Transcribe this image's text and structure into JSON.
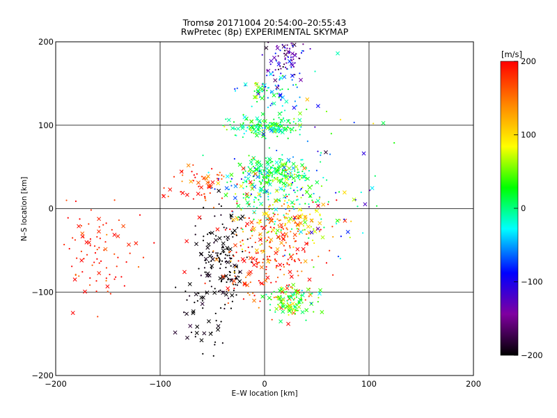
{
  "chart_data": {
    "type": "scatter",
    "title": "Tromsø 20171004 20:54:00–20:55:43",
    "subtitle": "RwPretec (8p) EXPERIMENTAL SKYMAP",
    "xlabel": "E–W location [km]",
    "ylabel": "N–S location [km]",
    "xlim": [
      -200,
      200
    ],
    "ylim": [
      -200,
      200
    ],
    "xticks": [
      -200,
      -100,
      0,
      100,
      200
    ],
    "yticks": [
      -200,
      -100,
      0,
      100,
      200
    ],
    "grid": true,
    "colorbar": {
      "label": "[m/s]",
      "range": [
        -200,
        200
      ],
      "ticks": [
        -200,
        -100,
        0,
        100,
        200
      ],
      "colormap": [
        "#000000",
        "#8000a0",
        "#0000ff",
        "#00ffff",
        "#00ff00",
        "#ffff00",
        "#ff8000",
        "#ff0000"
      ]
    },
    "marker_types": [
      "dot",
      "x"
    ],
    "clusters": [
      {
        "x": 20,
        "y": 180,
        "sx": 12,
        "sy": 15,
        "n": 90,
        "v": -130,
        "vs": 40
      },
      {
        "x": 5,
        "y": 140,
        "sx": 15,
        "sy": 12,
        "n": 70,
        "v": -20,
        "vs": 60
      },
      {
        "x": 2,
        "y": 98,
        "sx": 18,
        "sy": 6,
        "n": 160,
        "v": 10,
        "vs": 30
      },
      {
        "x": 8,
        "y": 45,
        "sx": 14,
        "sy": 8,
        "n": 180,
        "v": 20,
        "vs": 30
      },
      {
        "x": 5,
        "y": 22,
        "sx": 25,
        "sy": 15,
        "n": 160,
        "v": 0,
        "vs": 60
      },
      {
        "x": 25,
        "y": -15,
        "sx": 22,
        "sy": 15,
        "n": 150,
        "v": 110,
        "vs": 60
      },
      {
        "x": -40,
        "y": -60,
        "sx": 12,
        "sy": 25,
        "n": 150,
        "v": -200,
        "vs": 10
      },
      {
        "x": 0,
        "y": -60,
        "sx": 25,
        "sy": 30,
        "n": 220,
        "v": 180,
        "vs": 40
      },
      {
        "x": 25,
        "y": -110,
        "sx": 12,
        "sy": 10,
        "n": 120,
        "v": 40,
        "vs": 30
      },
      {
        "x": -160,
        "y": -50,
        "sx": 20,
        "sy": 30,
        "n": 90,
        "v": 190,
        "vs": 20
      },
      {
        "x": -60,
        "y": 30,
        "sx": 15,
        "sy": 15,
        "n": 60,
        "v": 180,
        "vs": 30
      },
      {
        "x": 50,
        "y": 40,
        "sx": 35,
        "sy": 50,
        "n": 90,
        "v": 0,
        "vs": 80
      },
      {
        "x": -60,
        "y": -130,
        "sx": 15,
        "sy": 25,
        "n": 50,
        "v": -200,
        "vs": 10
      }
    ]
  }
}
